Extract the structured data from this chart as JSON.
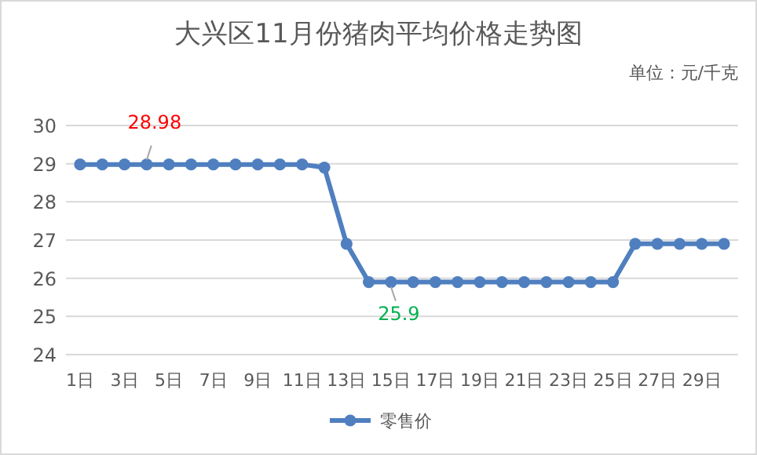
{
  "chart_data": {
    "type": "line",
    "title": "大兴区11月份猪肉平均价格走势图",
    "subtitle": "单位：元/千克",
    "categories": [
      "1日",
      null,
      "3日",
      null,
      "5日",
      null,
      "7日",
      null,
      "9日",
      null,
      "11日",
      null,
      "13日",
      null,
      "15日",
      null,
      "17日",
      null,
      "19日",
      null,
      "21日",
      null,
      "23日",
      null,
      "25日",
      null,
      "27日",
      null,
      "29日",
      null
    ],
    "series": [
      {
        "name": "零售价",
        "color": "#4f7fbf",
        "values": [
          28.98,
          28.98,
          28.98,
          28.98,
          28.98,
          28.98,
          28.98,
          28.98,
          28.98,
          28.98,
          28.98,
          28.9,
          26.9,
          25.9,
          25.9,
          25.9,
          25.9,
          25.9,
          25.9,
          25.9,
          25.9,
          25.9,
          25.9,
          25.9,
          25.9,
          26.9,
          26.9,
          26.9,
          26.9,
          26.9
        ],
        "value_labels": [
          null,
          null,
          null,
          "28.98",
          null,
          null,
          null,
          null,
          null,
          null,
          null,
          null,
          null,
          null,
          "25.9",
          null,
          null,
          null,
          null,
          null,
          null,
          null,
          null,
          null,
          null,
          null,
          null,
          null,
          null,
          null
        ]
      }
    ],
    "ylim": [
      24,
      30
    ],
    "yticks": [
      24,
      25,
      26,
      27,
      28,
      29,
      30
    ],
    "grid": "y",
    "legend": "bottom",
    "marker": "circle",
    "line_style": "solid"
  }
}
